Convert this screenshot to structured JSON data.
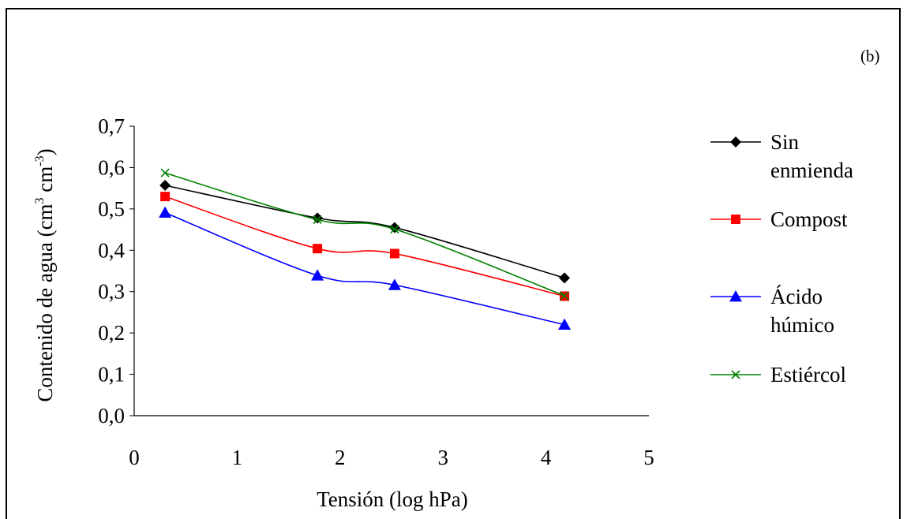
{
  "chart_data": {
    "type": "line",
    "panel_label": "(b)",
    "xlabel": "Tensión (log hPa)",
    "ylabel": {
      "prefix": "Contenido de agua (cm",
      "sup1": "3",
      "mid": " cm",
      "sup2": "-3",
      "suffix": ")"
    },
    "xlim": [
      0,
      5
    ],
    "ylim": [
      0,
      0.7
    ],
    "x_ticks": [
      0,
      1,
      2,
      3,
      4,
      5
    ],
    "x_tick_labels": [
      "0",
      "1",
      "2",
      "3",
      "4",
      "5"
    ],
    "y_ticks": [
      0,
      0.1,
      0.2,
      0.3,
      0.4,
      0.5,
      0.6,
      0.7
    ],
    "y_tick_labels": [
      "0,0",
      "0,1",
      "0,2",
      "0,3",
      "0,4",
      "0,5",
      "0,6",
      "0,7"
    ],
    "grid": false,
    "legend_position": "right",
    "series": [
      {
        "name": [
          "Sin",
          "enmienda"
        ],
        "color": "#000000",
        "marker": "diamond",
        "points": [
          [
            0.3,
            0.557
          ],
          [
            1.78,
            0.478
          ],
          [
            2.53,
            0.455
          ],
          [
            4.18,
            0.333
          ]
        ]
      },
      {
        "name": [
          "Compost"
        ],
        "color": "#ff0000",
        "marker": "square",
        "points": [
          [
            0.3,
            0.53
          ],
          [
            1.78,
            0.404
          ],
          [
            2.53,
            0.392
          ],
          [
            4.18,
            0.289
          ]
        ]
      },
      {
        "name": [
          "Ácido",
          "húmico"
        ],
        "color": "#0000ff",
        "marker": "triangle",
        "points": [
          [
            0.3,
            0.491
          ],
          [
            1.78,
            0.339
          ],
          [
            2.53,
            0.316
          ],
          [
            4.18,
            0.22
          ]
        ]
      },
      {
        "name": [
          "Estiércol"
        ],
        "color": "#008000",
        "marker": "x",
        "points": [
          [
            0.3,
            0.587
          ],
          [
            1.78,
            0.474
          ],
          [
            2.53,
            0.451
          ],
          [
            4.18,
            0.29
          ]
        ]
      }
    ]
  }
}
